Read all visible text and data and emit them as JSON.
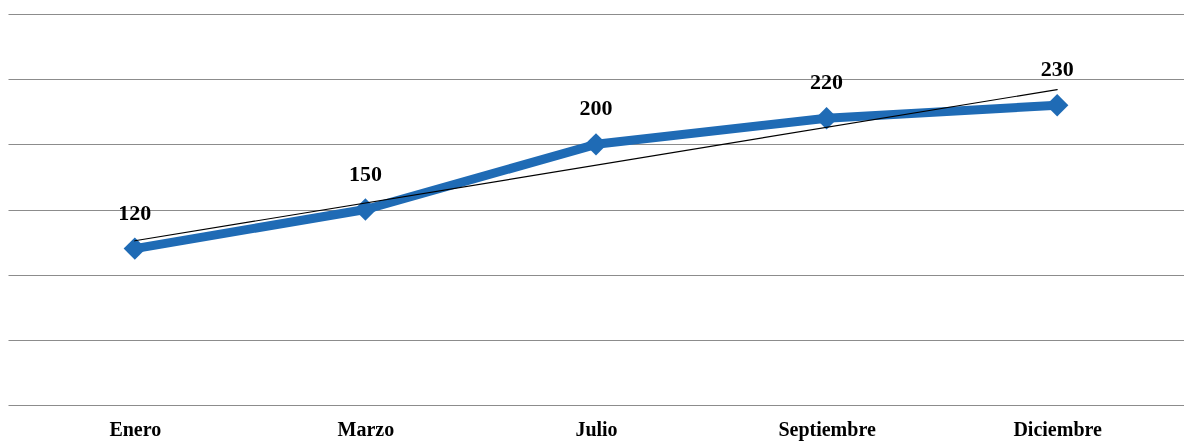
{
  "chart_data": {
    "type": "line",
    "categories": [
      "Enero",
      "Marzo",
      "Julio",
      "Septiembre",
      "Diciembre"
    ],
    "series": [
      {
        "color": "#1f6bb5",
        "values": [
          120,
          150,
          200,
          220,
          230
        ],
        "marker": "diamond",
        "data_labels": true
      },
      {
        "type": "line",
        "color": "#000000",
        "x": [
          "Enero",
          "Diciembre"
        ],
        "values": [
          126,
          242
        ],
        "marker": "none"
      }
    ],
    "ylim": [
      0,
      300
    ],
    "yticks": [
      0,
      50,
      100,
      150,
      200,
      250,
      300
    ],
    "grid": "y",
    "tick_labels": "x",
    "line_style": "solid"
  }
}
